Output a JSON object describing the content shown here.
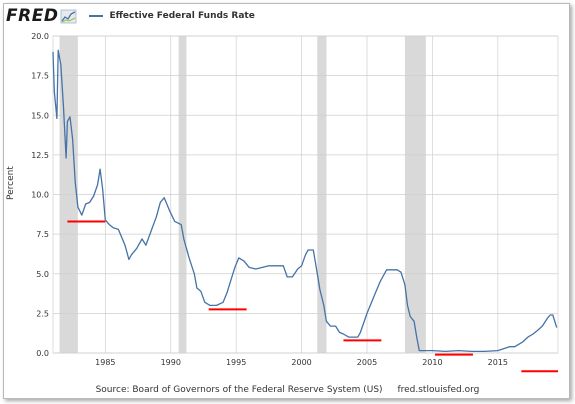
{
  "header": {
    "logo_text": "FRED",
    "legend_label": "Effective Federal Funds Rate"
  },
  "source": {
    "text": "Source: Board of Governors of the Federal Reserve System (US)",
    "url": "fred.stlouisfed.org"
  },
  "colors": {
    "series": "#4572a7",
    "recession": "#d9d9d9",
    "marker": "#ff0000",
    "grid": "#cfcfcf"
  },
  "chart_data": {
    "type": "line",
    "title": "",
    "xlabel": "",
    "ylabel": "Percent",
    "xlim": [
      1981.0,
      2019.6
    ],
    "ylim": [
      0,
      20
    ],
    "grid": true,
    "legend": "top-left",
    "yticks": [
      0.0,
      2.5,
      5.0,
      7.5,
      10.0,
      12.5,
      15.0,
      17.5,
      20.0
    ],
    "ytick_labels": [
      "0.0",
      "2.5",
      "5.0",
      "7.5",
      "10.0",
      "12.5",
      "15.0",
      "17.5",
      "20.0"
    ],
    "xticks": [
      1985,
      1990,
      1995,
      2000,
      2005,
      2010,
      2015
    ],
    "xtick_labels": [
      "1985",
      "1990",
      "1995",
      "2000",
      "2005",
      "2010",
      "2015"
    ],
    "recessions": [
      [
        1981.5,
        1982.9
      ],
      [
        1990.6,
        1991.2
      ],
      [
        2001.2,
        2001.9
      ],
      [
        2007.9,
        2009.5
      ]
    ],
    "series": [
      {
        "name": "Effective Federal Funds Rate",
        "color": "#4572a7",
        "x": [
          1981.0,
          1981.1,
          1981.3,
          1981.4,
          1981.6,
          1981.8,
          1982.0,
          1982.1,
          1982.3,
          1982.5,
          1982.7,
          1982.9,
          1983.2,
          1983.5,
          1983.8,
          1984.1,
          1984.4,
          1984.6,
          1984.8,
          1985.0,
          1985.3,
          1985.6,
          1986.0,
          1986.5,
          1986.8,
          1987.0,
          1987.4,
          1987.8,
          1988.1,
          1988.5,
          1988.9,
          1989.2,
          1989.5,
          1989.9,
          1990.3,
          1990.8,
          1991.0,
          1991.4,
          1991.8,
          1992.0,
          1992.3,
          1992.6,
          1993.0,
          1993.5,
          1994.0,
          1994.3,
          1994.6,
          1994.9,
          1995.2,
          1995.6,
          1996.0,
          1996.5,
          1997.0,
          1997.5,
          1998.0,
          1998.6,
          1998.9,
          1999.3,
          1999.7,
          2000.0,
          2000.3,
          2000.5,
          2000.9,
          2001.1,
          2001.4,
          2001.7,
          2001.9,
          2002.2,
          2002.6,
          2002.9,
          2003.2,
          2003.6,
          2004.0,
          2004.3,
          2004.5,
          2005.0,
          2005.6,
          2006.0,
          2006.5,
          2007.0,
          2007.3,
          2007.6,
          2007.9,
          2008.1,
          2008.3,
          2008.6,
          2008.8,
          2009.0,
          2009.5,
          2010.0,
          2011.0,
          2012.0,
          2013.0,
          2014.0,
          2015.0,
          2015.9,
          2016.3,
          2016.9,
          2017.3,
          2017.7,
          2018.0,
          2018.4,
          2018.8,
          2019.0,
          2019.2,
          2019.5
        ],
        "values": [
          19.0,
          16.5,
          14.8,
          19.1,
          18.2,
          15.5,
          12.3,
          14.6,
          14.9,
          13.5,
          10.8,
          9.2,
          8.7,
          9.4,
          9.5,
          9.9,
          10.6,
          11.6,
          10.3,
          8.4,
          8.1,
          7.9,
          7.8,
          6.8,
          5.9,
          6.2,
          6.6,
          7.2,
          6.8,
          7.7,
          8.6,
          9.5,
          9.8,
          9.0,
          8.3,
          8.1,
          7.2,
          6.0,
          5.0,
          4.1,
          3.9,
          3.2,
          3.0,
          3.0,
          3.2,
          3.8,
          4.6,
          5.4,
          6.0,
          5.8,
          5.4,
          5.3,
          5.4,
          5.5,
          5.5,
          5.5,
          4.8,
          4.8,
          5.3,
          5.5,
          6.2,
          6.5,
          6.5,
          5.5,
          4.0,
          3.0,
          2.0,
          1.7,
          1.7,
          1.3,
          1.2,
          1.0,
          1.0,
          1.0,
          1.3,
          2.5,
          3.7,
          4.5,
          5.25,
          5.25,
          5.25,
          5.1,
          4.3,
          3.0,
          2.3,
          2.0,
          1.0,
          0.15,
          0.15,
          0.15,
          0.1,
          0.15,
          0.1,
          0.1,
          0.15,
          0.4,
          0.4,
          0.7,
          1.0,
          1.2,
          1.4,
          1.7,
          2.2,
          2.4,
          2.4,
          1.6
        ]
      }
    ],
    "annotations": [
      {
        "type": "hline",
        "color": "#ff0000",
        "y": 8.3,
        "x": [
          1982.1,
          1985.0
        ]
      },
      {
        "type": "hline",
        "color": "#ff0000",
        "y": 2.75,
        "x": [
          1992.9,
          1995.8
        ]
      },
      {
        "type": "hline",
        "color": "#ff0000",
        "y": 0.8,
        "x": [
          2003.2,
          2006.1
        ]
      },
      {
        "type": "hline",
        "color": "#ff0000",
        "y": -0.1,
        "x": [
          2010.2,
          2013.1
        ]
      },
      {
        "type": "hline",
        "color": "#ff0000",
        "y": -1.15,
        "x": [
          2016.8,
          2019.6
        ]
      }
    ]
  }
}
